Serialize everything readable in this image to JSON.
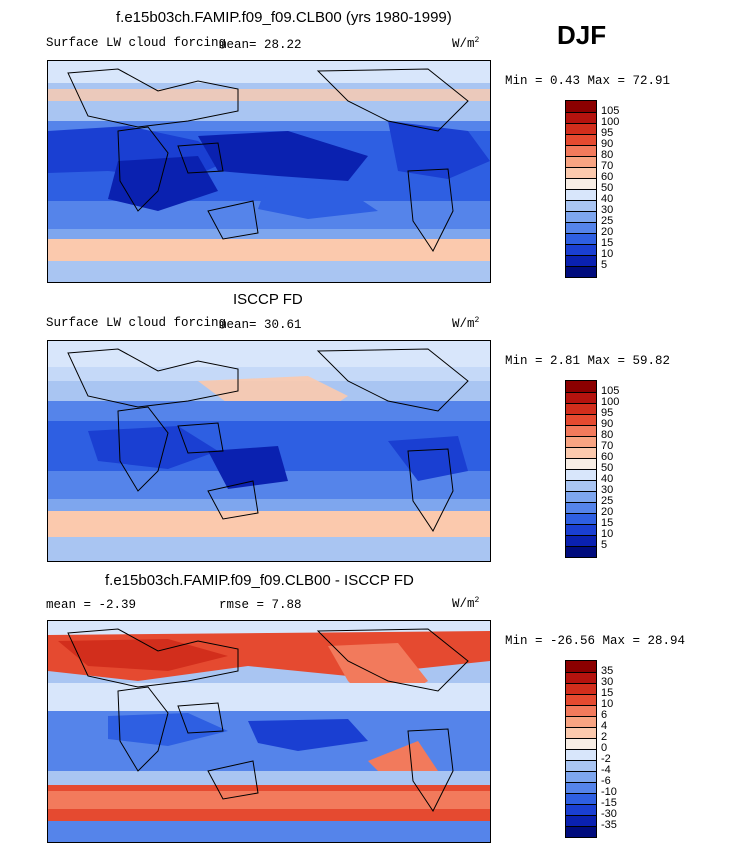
{
  "season": "DJF",
  "panel1": {
    "title": "f.e15b03ch.FAMIP.f09_f09.CLB00 (yrs 1980-1999)",
    "variable": "Surface LW cloud forcing",
    "mean_text": "mean=  28.22",
    "units": "W/m",
    "units_sup": "2",
    "minmax_text": "Min =   0.43 Max =  72.91"
  },
  "panel2": {
    "title": "ISCCP FD",
    "variable": "Surface LW cloud forcing",
    "mean_text": "mean=  30.61",
    "units": "W/m",
    "units_sup": "2",
    "minmax_text": "Min =   2.81 Max =  59.82"
  },
  "panel3": {
    "title": "f.e15b03ch.FAMIP.f09_f09.CLB00 - ISCCP FD",
    "mean_text": "mean =  -2.39",
    "rmse_text": "rmse =   7.88",
    "units": "W/m",
    "units_sup": "2",
    "minmax_text": "Min = -26.56 Max =  28.94"
  },
  "colorbar_abs": {
    "labels": [
      "105",
      "100",
      "95",
      "90",
      "80",
      "70",
      "60",
      "50",
      "40",
      "30",
      "25",
      "20",
      "15",
      "10",
      "5"
    ],
    "colors": [
      "#8b0000",
      "#b5130e",
      "#d22e1c",
      "#e54a30",
      "#f27a5c",
      "#f8a482",
      "#fbc9ad",
      "#f7ede4",
      "#d8e6fb",
      "#a9c5f2",
      "#7ea6ee",
      "#5584ea",
      "#2e5fe2",
      "#1a3fd2",
      "#0a21b0",
      "#000c7d"
    ]
  },
  "colorbar_diff": {
    "labels": [
      "35",
      "30",
      "15",
      "10",
      "6",
      "4",
      "2",
      "0",
      "-2",
      "-4",
      "-6",
      "-10",
      "-15",
      "-30",
      "-35"
    ],
    "colors": [
      "#8b0000",
      "#b5130e",
      "#d22e1c",
      "#e54a30",
      "#f27a5c",
      "#f8a482",
      "#fbc9ad",
      "#f7ede4",
      "#d8e6fb",
      "#a9c5f2",
      "#7ea6ee",
      "#5584ea",
      "#2e5fe2",
      "#1a3fd2",
      "#0a21b0",
      "#000c7d"
    ]
  }
}
